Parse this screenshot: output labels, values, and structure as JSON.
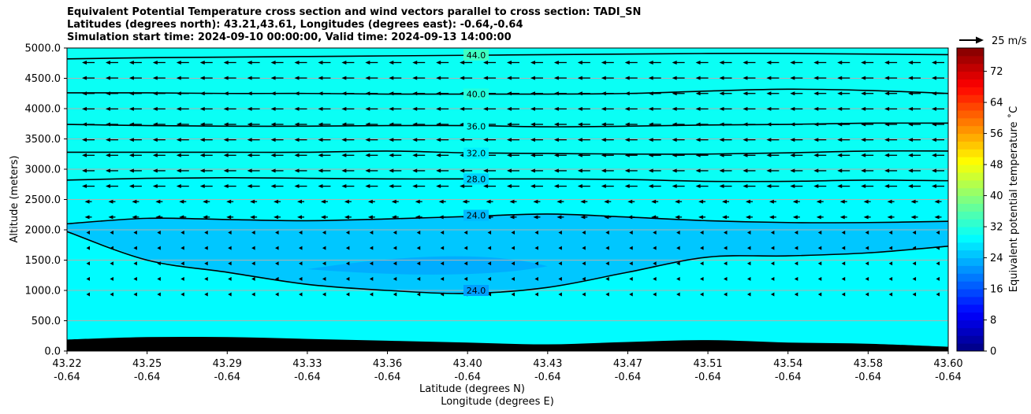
{
  "chart_data": {
    "type": "heatmap",
    "title_lines": [
      "Equivalent Potential Temperature cross section and wind vectors parallel to cross section: TADI_SN",
      "Latitudes (degrees north): 43.21,43.61, Longitudes (degrees east): -0.64,-0.64",
      "Simulation start time: 2024-09-10 00:00:00, Valid time: 2024-09-13 14:00:00"
    ],
    "ylabel": "Altitude (meters)",
    "xlabel_lines": [
      "Latitude (degrees N)",
      "Longitude (degrees E)"
    ],
    "ylim": [
      0,
      5000
    ],
    "yticks": [
      "0.0",
      "500.0",
      "1000.0",
      "1500.0",
      "2000.0",
      "2500.0",
      "3000.0",
      "3500.0",
      "4000.0",
      "4500.0",
      "5000.0"
    ],
    "xticks_lat": [
      "43.22",
      "43.25",
      "43.29",
      "43.33",
      "43.36",
      "43.40",
      "43.43",
      "43.47",
      "43.51",
      "43.54",
      "43.58",
      "43.60"
    ],
    "xticks_lon": [
      "-0.64",
      "-0.64",
      "-0.64",
      "-0.64",
      "-0.64",
      "-0.64",
      "-0.64",
      "-0.64",
      "-0.64",
      "-0.64",
      "-0.64",
      "-0.64"
    ],
    "grid": true,
    "colorbar": {
      "label": "Equivalent potential temperature ˚C",
      "range": [
        0,
        78
      ],
      "ticks": [
        "0",
        "8",
        "16",
        "24",
        "32",
        "40",
        "48",
        "56",
        "64",
        "72"
      ],
      "colormap": "jet"
    },
    "quiver_key": "25 m/s",
    "contours": [
      {
        "label": "44.0",
        "altitude_profile": [
          4820,
          4840,
          4850,
          4860,
          4870,
          4880,
          4890,
          4900,
          4910,
          4910,
          4900,
          4890
        ]
      },
      {
        "label": "40.0",
        "altitude_profile": [
          4260,
          4260,
          4250,
          4250,
          4240,
          4240,
          4240,
          4250,
          4290,
          4320,
          4300,
          4250
        ]
      },
      {
        "label": "36.0",
        "altitude_profile": [
          3740,
          3720,
          3710,
          3710,
          3720,
          3720,
          3700,
          3710,
          3730,
          3740,
          3760,
          3760
        ]
      },
      {
        "label": "32.0",
        "altitude_profile": [
          3280,
          3280,
          3280,
          3280,
          3300,
          3270,
          3260,
          3250,
          3250,
          3270,
          3300,
          3300
        ]
      },
      {
        "label": "28.0",
        "altitude_profile": [
          2820,
          2850,
          2860,
          2850,
          2840,
          2840,
          2840,
          2830,
          2800,
          2800,
          2820,
          2810
        ]
      },
      {
        "label": "24.0",
        "altitude_profile": [
          2100,
          2190,
          2170,
          2150,
          2180,
          2220,
          2260,
          2210,
          2150,
          2120,
          2120,
          2140
        ]
      },
      {
        "label": "24.0",
        "altitude_profile": [
          1970,
          1500,
          1300,
          1100,
          1000,
          950,
          1050,
          1300,
          1550,
          1570,
          1620,
          1730
        ]
      }
    ],
    "terrain_altitude": [
      190,
      230,
      230,
      200,
      170,
      140,
      110,
      150,
      180,
      140,
      120,
      70
    ]
  }
}
